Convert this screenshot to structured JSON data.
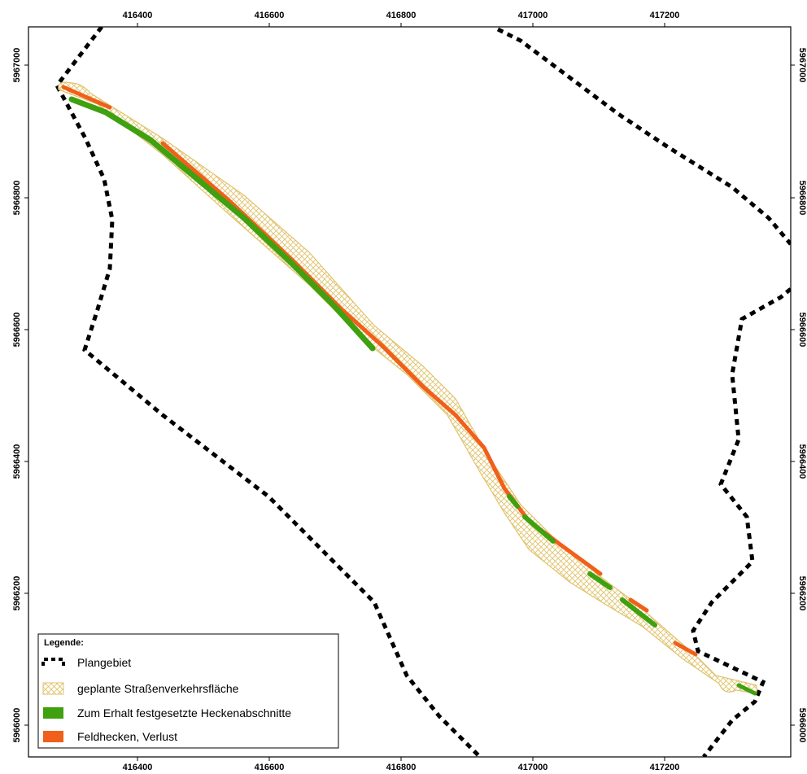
{
  "map": {
    "x_ticks": [
      "416400",
      "416600",
      "416800",
      "417000",
      "417200"
    ],
    "y_ticks": [
      "5967000",
      "5966800",
      "5966600",
      "5966400",
      "5966200",
      "5966000"
    ],
    "colors": {
      "boundary": "#000000",
      "road_hatch": "#e0c26a",
      "hedge_keep": "#3fa010",
      "hedge_loss": "#f0601a",
      "frame": "#000000"
    }
  },
  "legend": {
    "title": "Legende:",
    "items": [
      {
        "label": "Plangebiet",
        "symbol": "dashed-boundary"
      },
      {
        "label": "geplante Straßenverkehrsfläche",
        "symbol": "hatch"
      },
      {
        "label": "Zum Erhalt festgesetzte Heckenabschnitte",
        "symbol": "green-fill"
      },
      {
        "label": "Feldhecken, Verlust",
        "symbol": "orange-fill"
      }
    ]
  }
}
